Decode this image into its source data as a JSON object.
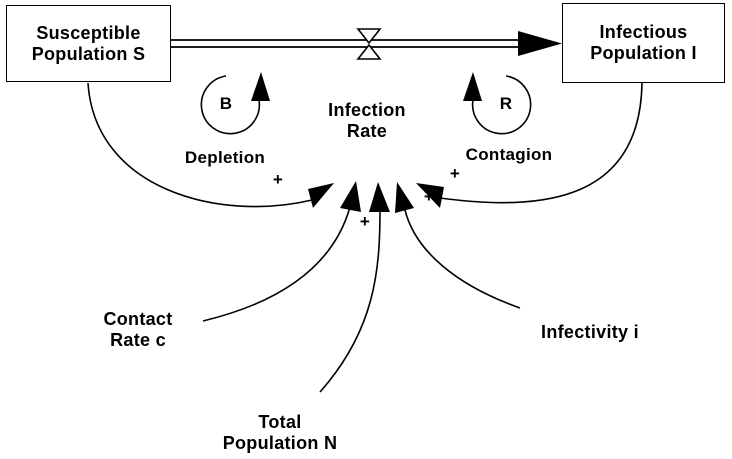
{
  "stocks": {
    "susceptible": {
      "line1": "Susceptible",
      "line2": "Population  S"
    },
    "infectious": {
      "line1": "Infectious",
      "line2": "Population  I"
    }
  },
  "flow": {
    "line1": "Infection",
    "line2": "Rate"
  },
  "variables": {
    "contact_rate": {
      "line1": "Contact",
      "line2": "Rate  c"
    },
    "total_population": {
      "line1": "Total",
      "line2": "Population  N"
    },
    "infectivity": {
      "line1": "Infectivity  i"
    }
  },
  "loops": {
    "depletion": {
      "letter": "B",
      "name": "Depletion"
    },
    "contagion": {
      "letter": "R",
      "name": "Contagion"
    }
  },
  "polarities": {
    "susceptible_link": "+",
    "contact_link": "+",
    "total_link": "+",
    "infectivity_link": "+",
    "infectious_link": "+"
  }
}
